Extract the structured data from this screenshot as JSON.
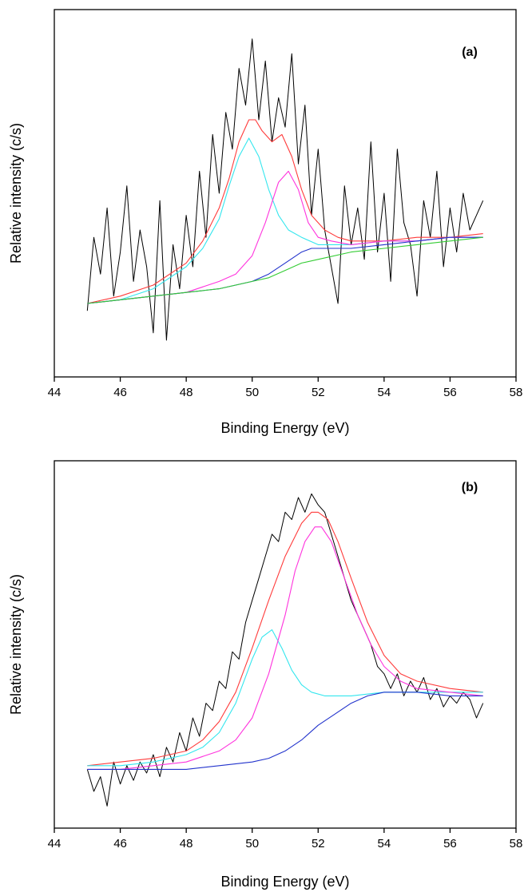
{
  "chart_data": [
    {
      "type": "line",
      "panel_label": "(a)",
      "xlabel": "Binding Energy (eV)",
      "ylabel": "Relative intensity (c/s)",
      "xlim": [
        44,
        58
      ],
      "ylim": [
        0,
        100
      ],
      "xticks": [
        44,
        46,
        48,
        50,
        52,
        54,
        56,
        58
      ],
      "xtick_labels": [
        "44",
        "46",
        "48",
        "50",
        "52",
        "54",
        "56",
        "58"
      ],
      "y_tick_labels_shown": false,
      "series": [
        {
          "color": "#000000",
          "role": "measured",
          "x": [
            45.0,
            45.2,
            45.4,
            45.6,
            45.8,
            46.0,
            46.2,
            46.4,
            46.6,
            46.8,
            47.0,
            47.2,
            47.4,
            47.6,
            47.8,
            48.0,
            48.2,
            48.4,
            48.6,
            48.8,
            49.0,
            49.2,
            49.4,
            49.6,
            49.8,
            50.0,
            50.2,
            50.4,
            50.6,
            50.8,
            51.0,
            51.2,
            51.4,
            51.6,
            51.8,
            52.0,
            52.2,
            52.4,
            52.6,
            52.8,
            53.0,
            53.2,
            53.4,
            53.6,
            53.8,
            54.0,
            54.2,
            54.4,
            54.6,
            54.8,
            55.0,
            55.2,
            55.4,
            55.6,
            55.8,
            56.0,
            56.2,
            56.4,
            56.6,
            56.8,
            57.0
          ],
          "y": [
            18,
            38,
            28,
            46,
            22,
            34,
            52,
            26,
            40,
            30,
            12,
            48,
            10,
            36,
            24,
            44,
            30,
            56,
            38,
            66,
            50,
            72,
            62,
            84,
            74,
            92,
            70,
            86,
            64,
            76,
            68,
            88,
            58,
            74,
            44,
            62,
            40,
            30,
            20,
            52,
            36,
            46,
            32,
            64,
            34,
            50,
            26,
            62,
            42,
            36,
            22,
            48,
            38,
            56,
            30,
            46,
            34,
            50,
            40,
            44,
            48
          ]
        },
        {
          "color": "#ff3b3b",
          "role": "envelope fit",
          "x": [
            45.0,
            46.0,
            47.0,
            48.0,
            48.5,
            49.0,
            49.3,
            49.6,
            49.9,
            50.1,
            50.3,
            50.6,
            50.9,
            51.2,
            51.5,
            51.8,
            52.2,
            52.6,
            53.0,
            54.0,
            55.0,
            56.0,
            57.0
          ],
          "y": [
            20,
            22,
            25,
            31,
            37,
            46,
            54,
            64,
            70,
            70,
            67,
            64,
            66,
            60,
            51,
            44,
            40,
            38,
            37,
            37,
            38,
            38,
            39
          ]
        },
        {
          "color": "#33e6ee",
          "role": "component fit",
          "x": [
            45.0,
            46.0,
            47.0,
            48.0,
            48.5,
            49.0,
            49.3,
            49.6,
            49.9,
            50.2,
            50.5,
            50.8,
            51.1,
            51.5,
            52.0,
            53.0,
            54.0,
            55.0,
            56.0,
            57.0
          ],
          "y": [
            20,
            21,
            24,
            30,
            35,
            43,
            52,
            60,
            65,
            60,
            51,
            44,
            40,
            38,
            36,
            36,
            37,
            37,
            38,
            38
          ]
        },
        {
          "color": "#ff33dd",
          "role": "component fit",
          "x": [
            45.0,
            46.0,
            47.0,
            48.0,
            49.0,
            49.5,
            50.0,
            50.4,
            50.8,
            51.1,
            51.4,
            51.7,
            52.0,
            52.4,
            53.0,
            54.0,
            55.0,
            56.0,
            57.0
          ],
          "y": [
            20,
            21,
            22,
            23,
            26,
            28,
            33,
            42,
            53,
            56,
            51,
            42,
            38,
            37,
            36,
            37,
            37,
            38,
            38
          ]
        },
        {
          "color": "#2233cc",
          "role": "background",
          "x": [
            45.0,
            46.0,
            47.0,
            48.0,
            49.0,
            50.0,
            50.5,
            51.0,
            51.5,
            51.8,
            52.2,
            53.0,
            54.0,
            55.0,
            56.0,
            57.0
          ],
          "y": [
            20,
            21,
            22,
            23,
            24,
            26,
            28,
            31,
            34,
            35,
            35,
            35,
            36,
            37,
            38,
            38
          ]
        },
        {
          "color": "#33cc33",
          "role": "background",
          "x": [
            45.0,
            46.0,
            47.0,
            48.0,
            49.0,
            50.0,
            50.5,
            51.0,
            51.5,
            52.0,
            53.0,
            54.0,
            55.0,
            56.0,
            57.0
          ],
          "y": [
            20,
            21,
            22,
            23,
            24,
            26,
            27,
            29,
            31,
            32,
            34,
            35,
            36,
            37,
            38
          ]
        }
      ]
    },
    {
      "type": "line",
      "panel_label": "(b)",
      "xlabel": "Binding Energy (eV)",
      "ylabel": "Relative intensity (c/s)",
      "xlim": [
        44,
        58
      ],
      "ylim": [
        0,
        100
      ],
      "xticks": [
        44,
        46,
        48,
        50,
        52,
        54,
        56,
        58
      ],
      "xtick_labels": [
        "44",
        "46",
        "48",
        "50",
        "52",
        "54",
        "56",
        "58"
      ],
      "y_tick_labels_shown": false,
      "series": [
        {
          "color": "#000000",
          "role": "measured",
          "x": [
            45.0,
            45.2,
            45.4,
            45.6,
            45.8,
            46.0,
            46.2,
            46.4,
            46.6,
            46.8,
            47.0,
            47.2,
            47.4,
            47.6,
            47.8,
            48.0,
            48.2,
            48.4,
            48.6,
            48.8,
            49.0,
            49.2,
            49.4,
            49.6,
            49.8,
            50.0,
            50.2,
            50.4,
            50.6,
            50.8,
            51.0,
            51.2,
            51.4,
            51.6,
            51.8,
            52.0,
            52.2,
            52.4,
            52.6,
            52.8,
            53.0,
            53.2,
            53.4,
            53.6,
            53.8,
            54.0,
            54.2,
            54.4,
            54.6,
            54.8,
            55.0,
            55.2,
            55.4,
            55.6,
            55.8,
            56.0,
            56.2,
            56.4,
            56.6,
            56.8,
            57.0
          ],
          "y": [
            16,
            10,
            14,
            6,
            18,
            12,
            17,
            13,
            18,
            15,
            20,
            14,
            22,
            18,
            26,
            21,
            30,
            25,
            34,
            32,
            40,
            38,
            48,
            46,
            56,
            62,
            68,
            74,
            80,
            78,
            86,
            84,
            90,
            86,
            91,
            88,
            86,
            80,
            74,
            68,
            62,
            58,
            54,
            50,
            44,
            42,
            38,
            42,
            36,
            40,
            37,
            41,
            35,
            38,
            33,
            36,
            34,
            37,
            35,
            30,
            34
          ]
        },
        {
          "color": "#ff3b3b",
          "role": "envelope fit",
          "x": [
            45.0,
            46.0,
            47.0,
            48.0,
            48.5,
            49.0,
            49.5,
            50.0,
            50.5,
            51.0,
            51.5,
            51.8,
            52.0,
            52.3,
            52.6,
            53.0,
            53.5,
            54.0,
            54.5,
            55.0,
            56.0,
            57.0
          ],
          "y": [
            17,
            18,
            19,
            21,
            24,
            29,
            37,
            49,
            62,
            74,
            83,
            86,
            86,
            84,
            78,
            68,
            56,
            47,
            42,
            40,
            38,
            37
          ]
        },
        {
          "color": "#33e6ee",
          "role": "component fit",
          "x": [
            45.0,
            46.0,
            47.0,
            48.0,
            48.5,
            49.0,
            49.5,
            50.0,
            50.3,
            50.6,
            50.9,
            51.2,
            51.5,
            51.8,
            52.2,
            53.0,
            54.0,
            55.0,
            56.0,
            57.0
          ],
          "y": [
            17,
            17,
            18,
            20,
            22,
            26,
            34,
            46,
            52,
            54,
            49,
            43,
            39,
            37,
            36,
            36,
            37,
            37,
            37,
            37
          ]
        },
        {
          "color": "#ff33dd",
          "role": "component fit",
          "x": [
            45.0,
            46.0,
            47.0,
            48.0,
            49.0,
            49.5,
            50.0,
            50.5,
            51.0,
            51.3,
            51.6,
            51.9,
            52.1,
            52.4,
            52.8,
            53.2,
            53.6,
            54.0,
            54.5,
            55.0,
            56.0,
            57.0
          ],
          "y": [
            16,
            16,
            17,
            18,
            21,
            24,
            30,
            42,
            58,
            70,
            78,
            82,
            82,
            78,
            68,
            58,
            50,
            44,
            40,
            38,
            37,
            36
          ]
        },
        {
          "color": "#2233cc",
          "role": "background",
          "x": [
            45.0,
            46.0,
            47.0,
            48.0,
            49.0,
            50.0,
            50.5,
            51.0,
            51.5,
            52.0,
            52.5,
            53.0,
            53.5,
            54.0,
            54.5,
            55.0,
            56.0,
            57.0
          ],
          "y": [
            16,
            16,
            16,
            16,
            17,
            18,
            19,
            21,
            24,
            28,
            31,
            34,
            36,
            37,
            37,
            37,
            36,
            36
          ]
        }
      ]
    }
  ]
}
